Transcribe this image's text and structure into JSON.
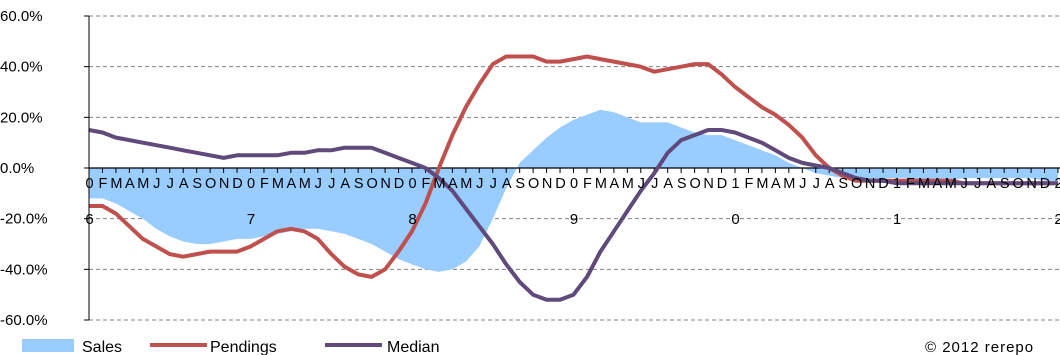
{
  "chart_data": {
    "type": "area",
    "ylim": [
      -60,
      60
    ],
    "y_ticks": [
      "60.0%",
      "40.0%",
      "20.0%",
      "0.0%",
      "-20.0%",
      "-40.0%",
      "-60.0%"
    ],
    "month_letters": [
      "0",
      "F",
      "M",
      "A",
      "M",
      "J",
      "J",
      "A",
      "S",
      "O",
      "N",
      "D",
      "0",
      "F",
      "M",
      "A",
      "M",
      "J",
      "J",
      "A",
      "S",
      "O",
      "N",
      "D",
      "0",
      "F",
      "M",
      "A",
      "M",
      "J",
      "J",
      "A",
      "S",
      "O",
      "N",
      "D",
      "0",
      "F",
      "M",
      "A",
      "M",
      "J",
      "J",
      "A",
      "S",
      "O",
      "N",
      "D",
      "1",
      "F",
      "M",
      "A",
      "M",
      "J",
      "J",
      "A",
      "S",
      "O",
      "N",
      "D",
      "1",
      "F",
      "M",
      "A",
      "M",
      "J",
      "J",
      "A",
      "S",
      "O",
      "N",
      "D",
      "2"
    ],
    "year_labels": [
      "6",
      "7",
      "8",
      "9",
      "0",
      "1",
      "2"
    ],
    "grid": true,
    "legend_position": "bottom-left",
    "series": [
      {
        "name": "Sales",
        "type": "area",
        "color": "#99ccff",
        "values": [
          -12,
          -12,
          -14,
          -17,
          -20,
          -24,
          -27,
          -29,
          -30,
          -30,
          -29,
          -28,
          -28,
          -27,
          -26,
          -25,
          -24,
          -24,
          -25,
          -26,
          -28,
          -30,
          -33,
          -36,
          -38,
          -40,
          -41,
          -40,
          -37,
          -31,
          -20,
          -8,
          2,
          7,
          12,
          16,
          19,
          21,
          23,
          22,
          20,
          18,
          18,
          18,
          16,
          14,
          13,
          13,
          11,
          9,
          7,
          5,
          2,
          0,
          -2,
          -3,
          -4,
          -4,
          -5,
          -4,
          -4,
          -4,
          -5,
          -5,
          -5,
          -4,
          -4,
          -4,
          -4,
          -4,
          -4,
          -5,
          -5
        ]
      },
      {
        "name": "Pendings",
        "type": "line",
        "color": "#c0504d",
        "values": [
          -15,
          -15,
          -18,
          -23,
          -28,
          -31,
          -34,
          -35,
          -34,
          -33,
          -33,
          -33,
          -31,
          -28,
          -25,
          -24,
          -25,
          -28,
          -34,
          -39,
          -42,
          -43,
          -40,
          -33,
          -25,
          -14,
          0,
          13,
          24,
          33,
          41,
          44,
          44,
          44,
          42,
          42,
          43,
          44,
          43,
          42,
          41,
          40,
          38,
          39,
          40,
          41,
          41,
          37,
          32,
          28,
          24,
          21,
          17,
          12,
          5,
          0,
          -3,
          -5,
          -5,
          -5,
          -5,
          -5,
          -5,
          -5,
          -5,
          -6,
          -6,
          -6,
          -6,
          -6,
          -6,
          -6,
          -6
        ]
      },
      {
        "name": "Median",
        "type": "line",
        "color": "#604a7b",
        "values": [
          15,
          14,
          12,
          11,
          10,
          9,
          8,
          7,
          6,
          5,
          4,
          5,
          5,
          5,
          5,
          6,
          6,
          7,
          7,
          8,
          8,
          8,
          6,
          4,
          2,
          0,
          -4,
          -9,
          -16,
          -23,
          -30,
          -38,
          -45,
          -50,
          -52,
          -52,
          -50,
          -43,
          -33,
          -25,
          -17,
          -9,
          -2,
          6,
          11,
          13,
          15,
          15,
          14,
          12,
          10,
          7,
          4,
          2,
          1,
          0,
          -2,
          -4,
          -5,
          -5,
          -6,
          -6,
          -6,
          -6,
          -6,
          -6,
          -6,
          -6,
          -6,
          -6,
          -6,
          -6,
          -6
        ]
      }
    ]
  },
  "credit": "© 2012 rerepo"
}
